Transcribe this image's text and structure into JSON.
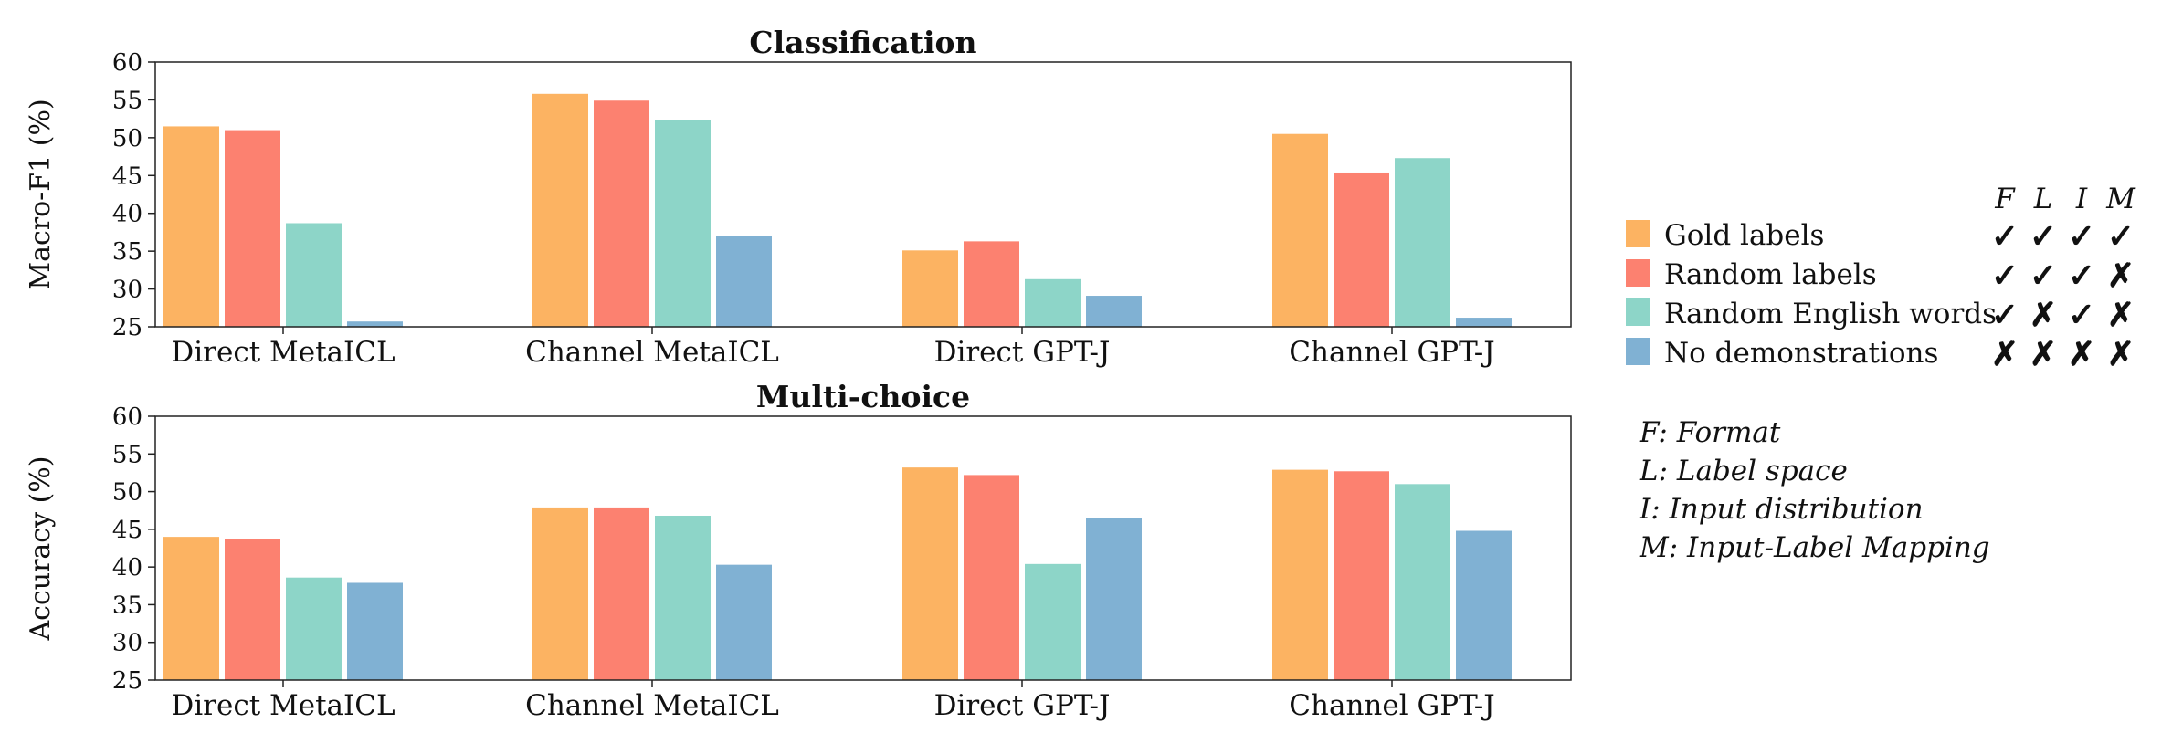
{
  "colors": {
    "gold": "#fcb362",
    "random": "#fc8170",
    "english": "#8dd5c8",
    "none": "#80b1d3",
    "check": "#b50c12",
    "cross": "#111111"
  },
  "legend": {
    "column_headers": [
      "F",
      "L",
      "I",
      "M"
    ],
    "entries": [
      {
        "label": "Gold labels",
        "color_key": "gold",
        "marks": [
          "check",
          "check",
          "check",
          "check"
        ]
      },
      {
        "label": "Random labels",
        "color_key": "random",
        "marks": [
          "check",
          "check",
          "check",
          "cross"
        ]
      },
      {
        "label": "Random English words",
        "color_key": "english",
        "marks": [
          "check",
          "cross",
          "check",
          "cross"
        ]
      },
      {
        "label": "No demonstrations",
        "color_key": "none",
        "marks": [
          "cross",
          "cross",
          "cross",
          "cross"
        ]
      }
    ],
    "symbols": {
      "check": "✓",
      "cross": "✗"
    },
    "definitions": [
      "F: Format",
      "L: Label space",
      "I: Input distribution",
      "M: Input-Label Mapping"
    ]
  },
  "chart_data": [
    {
      "type": "bar",
      "title": "Classification",
      "ylabel": "Macro-F1 (%)",
      "ylim": [
        25,
        60
      ],
      "yticks": [
        25,
        30,
        35,
        40,
        45,
        50,
        55,
        60
      ],
      "categories": [
        "Direct MetaICL",
        "Channel MetaICL",
        "Direct GPT-J",
        "Channel GPT-J"
      ],
      "series": [
        {
          "name": "Gold labels",
          "color_key": "gold",
          "values": [
            51.5,
            55.8,
            35.1,
            50.5
          ]
        },
        {
          "name": "Random labels",
          "color_key": "random",
          "values": [
            51.0,
            54.9,
            36.3,
            45.4
          ]
        },
        {
          "name": "Random English words",
          "color_key": "english",
          "values": [
            38.7,
            52.3,
            31.3,
            47.3
          ]
        },
        {
          "name": "No demonstrations",
          "color_key": "none",
          "values": [
            25.7,
            37.0,
            29.1,
            26.2
          ]
        }
      ]
    },
    {
      "type": "bar",
      "title": "Multi-choice",
      "ylabel": "Accuracy (%)",
      "ylim": [
        25,
        60
      ],
      "yticks": [
        25,
        30,
        35,
        40,
        45,
        50,
        55,
        60
      ],
      "categories": [
        "Direct MetaICL",
        "Channel MetaICL",
        "Direct GPT-J",
        "Channel GPT-J"
      ],
      "series": [
        {
          "name": "Gold labels",
          "color_key": "gold",
          "values": [
            44.0,
            47.9,
            53.2,
            52.9
          ]
        },
        {
          "name": "Random labels",
          "color_key": "random",
          "values": [
            43.7,
            47.9,
            52.2,
            52.7
          ]
        },
        {
          "name": "Random English words",
          "color_key": "english",
          "values": [
            38.6,
            46.8,
            40.4,
            51.0
          ]
        },
        {
          "name": "No demonstrations",
          "color_key": "none",
          "values": [
            37.9,
            40.3,
            46.5,
            44.8
          ]
        }
      ]
    }
  ]
}
